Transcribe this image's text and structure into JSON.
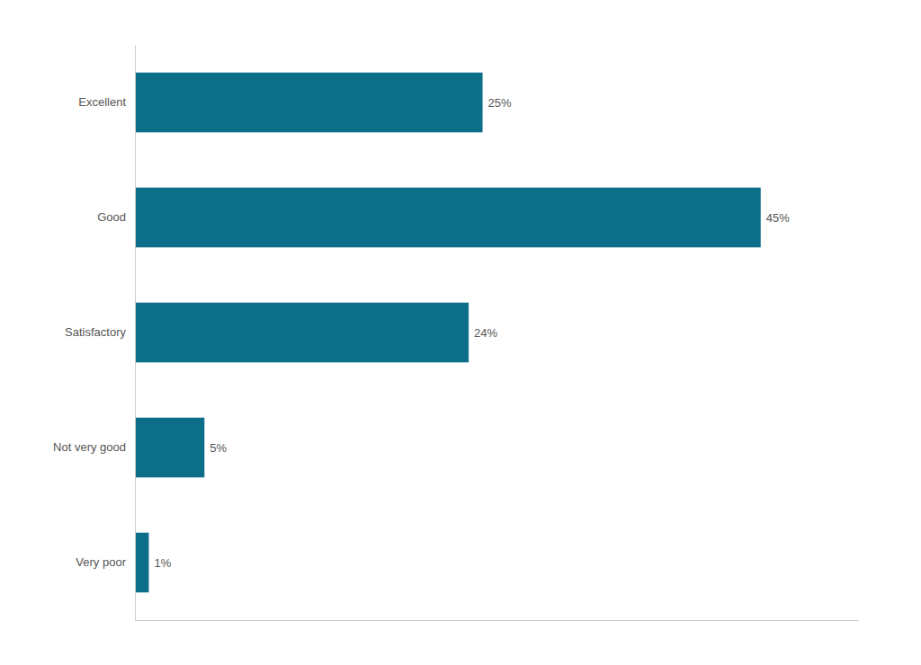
{
  "chart_data": {
    "type": "bar",
    "orientation": "horizontal",
    "categories": [
      "Excellent",
      "Good",
      "Satisfactory",
      "Not very good",
      "Very poor"
    ],
    "values": [
      25,
      45,
      24,
      5,
      1
    ],
    "value_labels": [
      "25%",
      "45%",
      "24%",
      "5%",
      "1%"
    ],
    "data_labels": true,
    "color": "#0d6e8a",
    "xlim": [
      0,
      52
    ],
    "tick_labels": "y",
    "grid": false
  }
}
